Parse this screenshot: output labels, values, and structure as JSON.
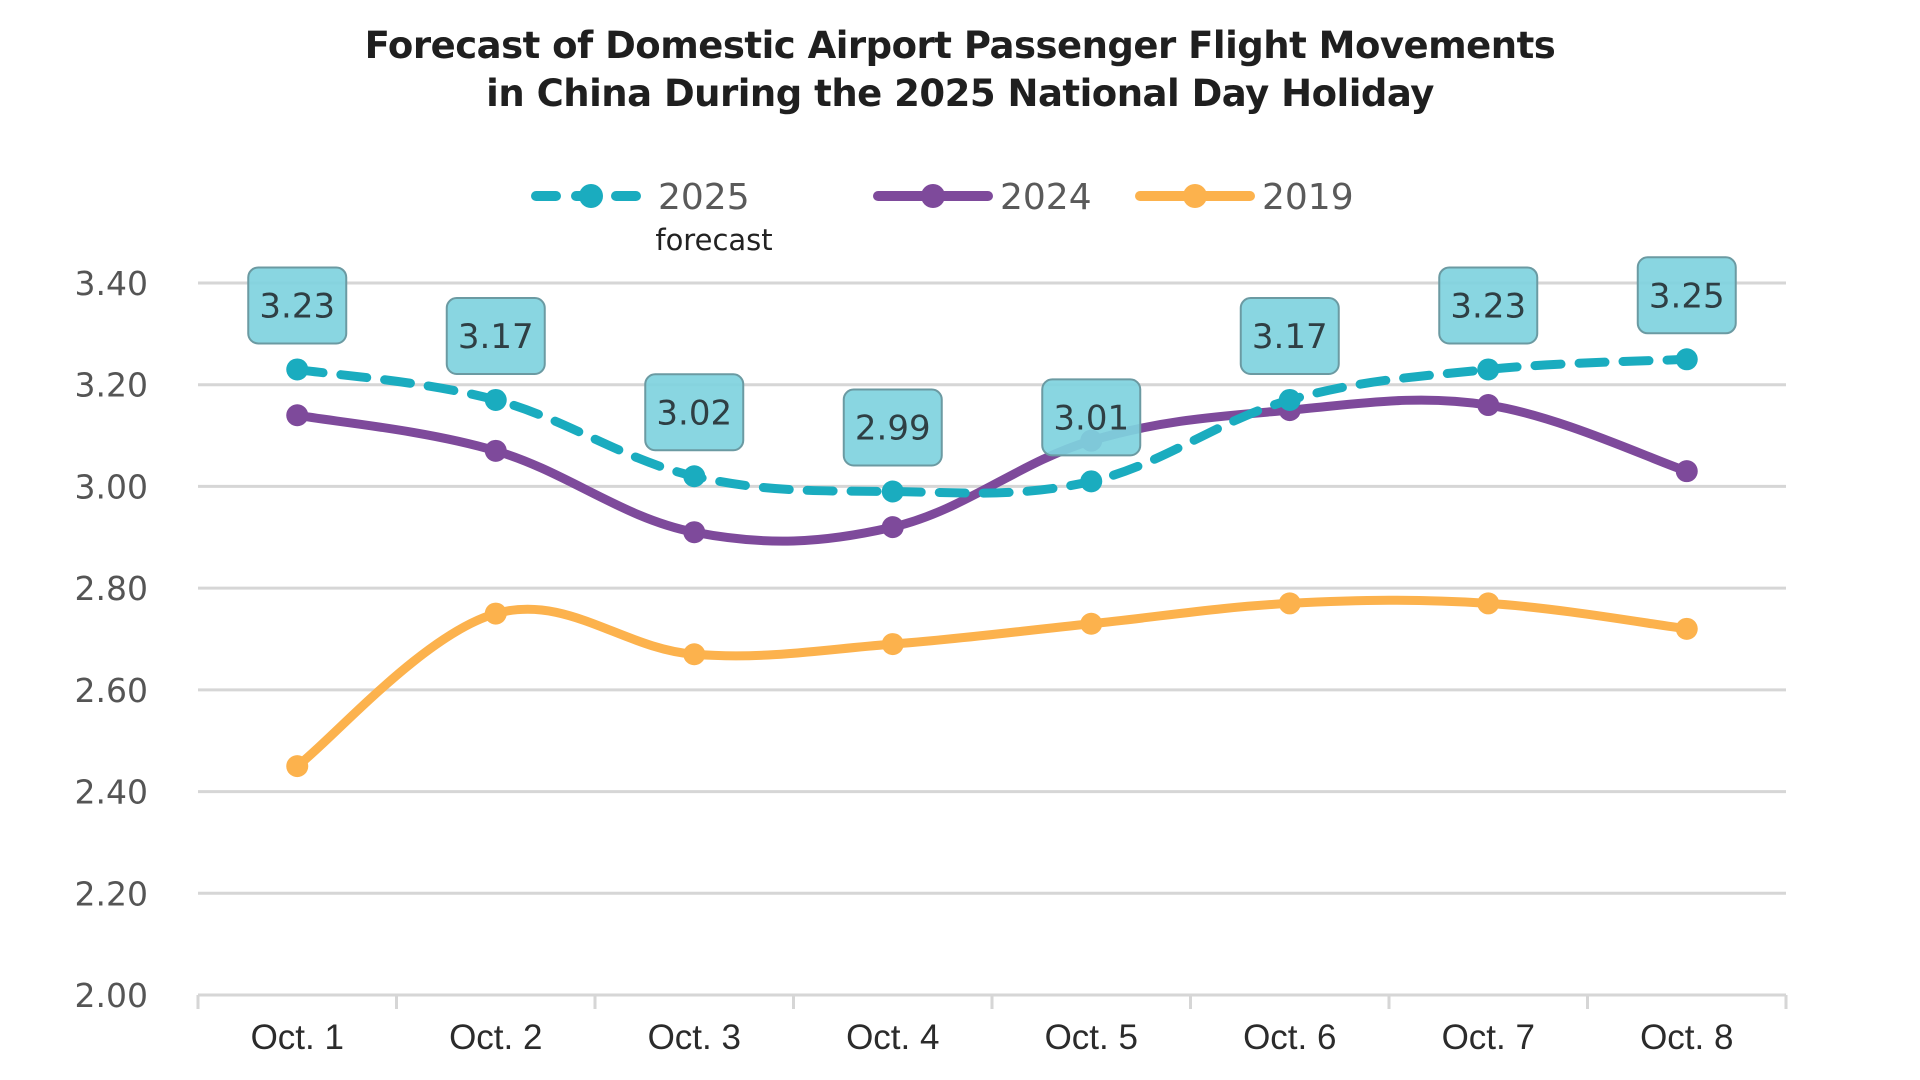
{
  "chart_data": {
    "type": "line",
    "title": "Forecast of Domestic Airport Passenger Flight Movements in China During the 2025 National Day Holiday",
    "title_lines": [
      "Forecast of Domestic Airport Passenger Flight Movements",
      "in China During the 2025 National Day Holiday"
    ],
    "xlabel": "",
    "ylabel": "",
    "categories": [
      "Oct. 1",
      "Oct. 2",
      "Oct. 3",
      "Oct. 4",
      "Oct. 5",
      "Oct. 6",
      "Oct. 7",
      "Oct. 8"
    ],
    "ylim": [
      2.0,
      3.4
    ],
    "yticks": [
      2.0,
      2.2,
      2.4,
      2.6,
      2.8,
      3.0,
      3.2,
      3.4
    ],
    "ytick_labels": [
      "2.00",
      "2.20",
      "2.40",
      "2.60",
      "2.80",
      "3.00",
      "3.20",
      "3.40"
    ],
    "grid": "horizontal",
    "legend_position": "top-center",
    "series": [
      {
        "name": "2025",
        "legend_label": "2025",
        "legend_sublabel": "forecast",
        "color": "#1aacbf",
        "style": "dashed",
        "values": [
          3.23,
          3.17,
          3.02,
          2.99,
          3.01,
          3.17,
          3.23,
          3.25
        ],
        "data_labels": [
          "3.23",
          "3.17",
          "3.02",
          "2.99",
          "3.01",
          "3.17",
          "3.23",
          "3.25"
        ],
        "label_box_color": "#7fd3de"
      },
      {
        "name": "2024",
        "legend_label": "2024",
        "color": "#7e4a9b",
        "style": "solid",
        "values": [
          3.14,
          3.07,
          2.91,
          2.92,
          3.09,
          3.15,
          3.16,
          3.03
        ]
      },
      {
        "name": "2019",
        "legend_label": "2019",
        "color": "#fcb24d",
        "style": "solid",
        "values": [
          2.45,
          2.75,
          2.67,
          2.69,
          2.73,
          2.77,
          2.77,
          2.72
        ]
      }
    ]
  }
}
